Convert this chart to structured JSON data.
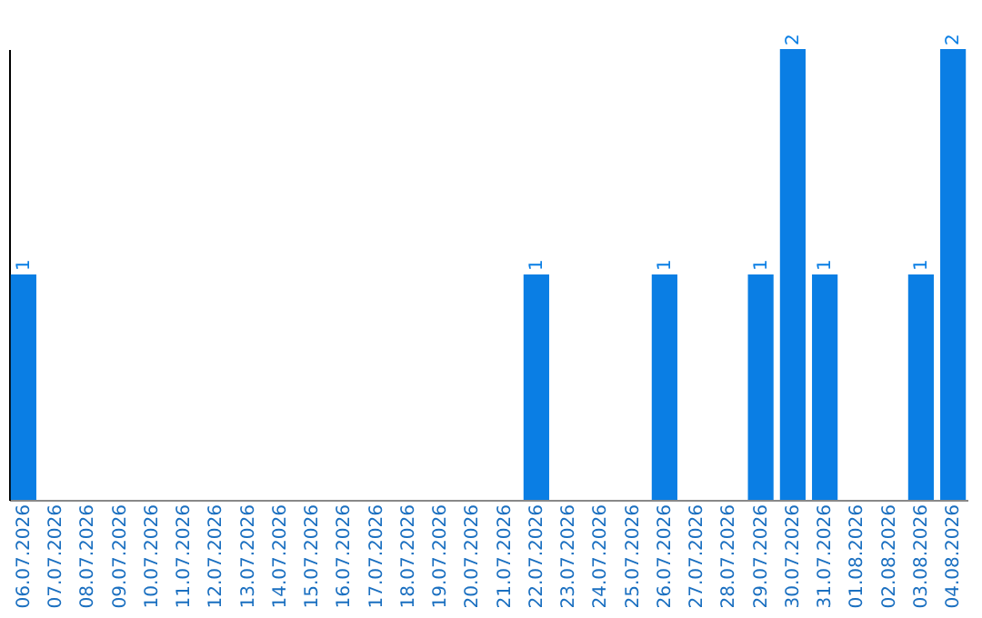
{
  "chart_data": {
    "type": "bar",
    "categories": [
      "06.07.2026",
      "07.07.2026",
      "08.07.2026",
      "09.07.2026",
      "10.07.2026",
      "11.07.2026",
      "12.07.2026",
      "13.07.2026",
      "14.07.2026",
      "15.07.2026",
      "16.07.2026",
      "17.07.2026",
      "18.07.2026",
      "19.07.2026",
      "20.07.2026",
      "21.07.2026",
      "22.07.2026",
      "23.07.2026",
      "24.07.2026",
      "25.07.2026",
      "26.07.2026",
      "27.07.2026",
      "28.07.2026",
      "29.07.2026",
      "30.07.2026",
      "31.07.2026",
      "01.08.2026",
      "02.08.2026",
      "03.08.2026",
      "04.08.2026"
    ],
    "values": [
      1,
      0,
      0,
      0,
      0,
      0,
      0,
      0,
      0,
      0,
      0,
      0,
      0,
      0,
      0,
      0,
      1,
      0,
      0,
      0,
      1,
      0,
      0,
      1,
      2,
      1,
      0,
      0,
      1,
      2
    ],
    "color": "#0a7ee4",
    "ylim": [
      0,
      2
    ],
    "tick_labels": "x",
    "value_labels": [
      "1",
      null,
      null,
      null,
      null,
      null,
      null,
      null,
      null,
      null,
      null,
      null,
      null,
      null,
      null,
      null,
      "1",
      null,
      null,
      null,
      "1",
      null,
      null,
      "1",
      "2",
      "1",
      null,
      null,
      "1",
      "2"
    ]
  }
}
